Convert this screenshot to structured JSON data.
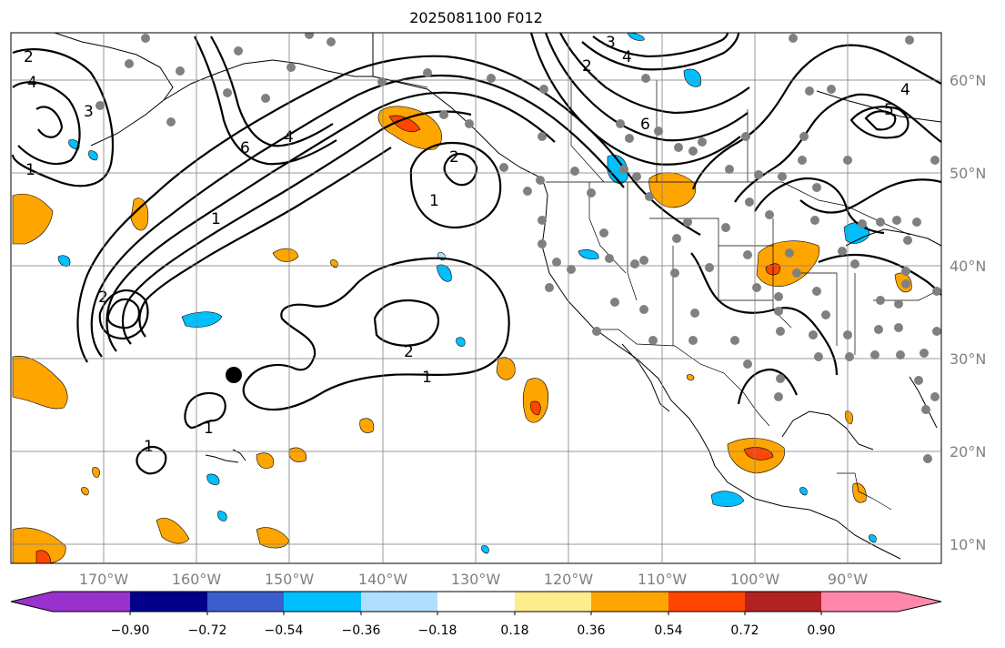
{
  "title": "2025081100 F012",
  "lat_labels": [
    "60°N",
    "50°N",
    "40°N",
    "30°N",
    "20°N",
    "10°N"
  ],
  "lon_labels": [
    "170°W",
    "160°W",
    "150°W",
    "140°W",
    "130°W",
    "120°W",
    "110°W",
    "100°W",
    "90°W"
  ],
  "colorbar": {
    "tick_labels": [
      "−0.90",
      "−0.72",
      "−0.54",
      "−0.36",
      "−0.18",
      "0.18",
      "0.36",
      "0.54",
      "0.72",
      "0.90"
    ],
    "colors": [
      "#9932cc",
      "#00008b",
      "#3a5fcd",
      "#00bfff",
      "#b0e0ff",
      "#ffffff",
      "#ffec8b",
      "#ffa500",
      "#ff4500",
      "#b22222",
      "#ff88aa"
    ]
  },
  "contour_labels": [
    "2",
    "4",
    "3",
    "1",
    "6",
    "4",
    "2",
    "1",
    "2",
    "1",
    "1",
    "1",
    "2",
    "4",
    "6",
    "3",
    "2",
    "4",
    "5",
    "1"
  ],
  "colors": {
    "positive_light": "#ffec8b",
    "positive_mid": "#ffa500",
    "positive_strong": "#ff4500",
    "negative_light": "#b0e0ff",
    "negative_mid": "#00bfff",
    "station_dot": "#808080",
    "marker_dot": "#000000"
  }
}
